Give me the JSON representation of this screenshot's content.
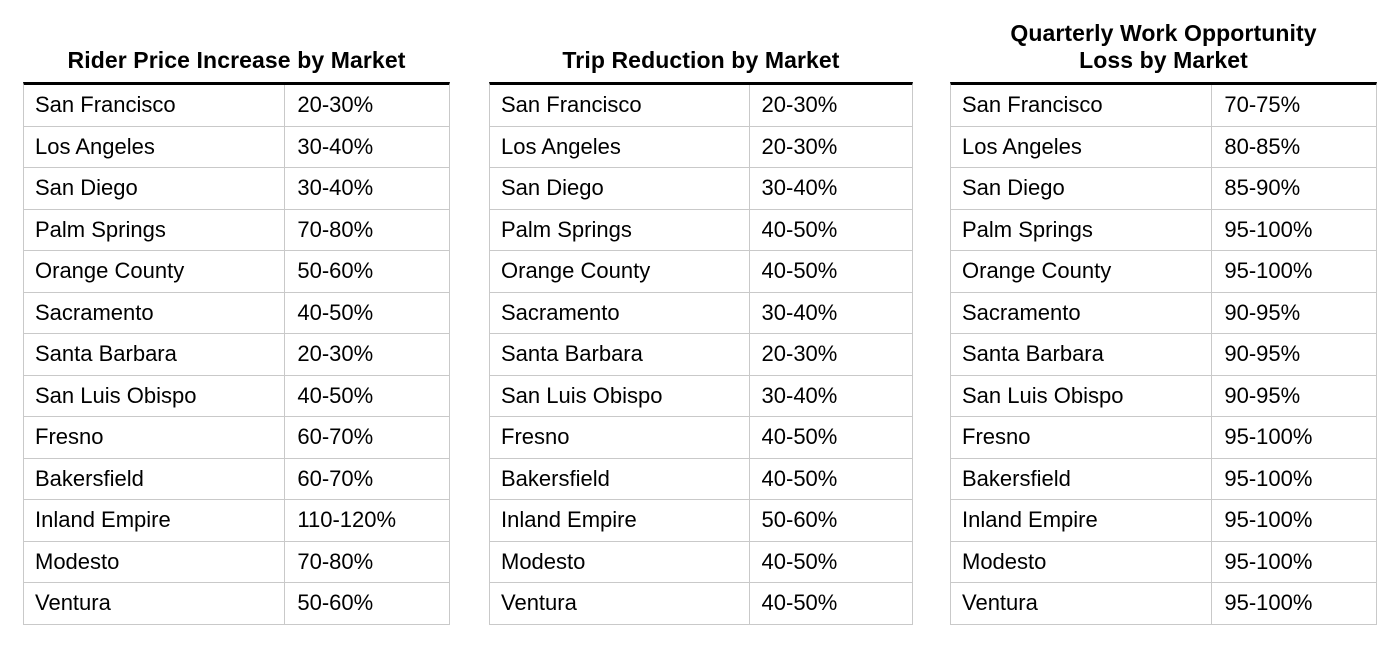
{
  "page": {
    "background": "#ffffff",
    "text_color": "#000000",
    "grid_border_color": "#c9c9c9",
    "title_rule_color": "#000000"
  },
  "chart_data": [
    {
      "type": "table",
      "title": "Rider Price Increase by Market",
      "title_lines": [
        "Rider Price Increase by Market"
      ],
      "rows": [
        [
          "San Francisco",
          "20-30%"
        ],
        [
          "Los Angeles",
          "30-40%"
        ],
        [
          "San Diego",
          "30-40%"
        ],
        [
          "Palm Springs",
          "70-80%"
        ],
        [
          "Orange County",
          "50-60%"
        ],
        [
          "Sacramento",
          "40-50%"
        ],
        [
          "Santa Barbara",
          "20-30%"
        ],
        [
          "San Luis Obispo",
          "40-50%"
        ],
        [
          "Fresno",
          "60-70%"
        ],
        [
          "Bakersfield",
          "60-70%"
        ],
        [
          "Inland Empire",
          "110-120%"
        ],
        [
          "Modesto",
          "70-80%"
        ],
        [
          "Ventura",
          "50-60%"
        ]
      ]
    },
    {
      "type": "table",
      "title": "Trip Reduction by Market",
      "title_lines": [
        "Trip Reduction by Market"
      ],
      "rows": [
        [
          "San Francisco",
          "20-30%"
        ],
        [
          "Los Angeles",
          "20-30%"
        ],
        [
          "San Diego",
          "30-40%"
        ],
        [
          "Palm Springs",
          "40-50%"
        ],
        [
          "Orange County",
          "40-50%"
        ],
        [
          "Sacramento",
          "30-40%"
        ],
        [
          "Santa Barbara",
          "20-30%"
        ],
        [
          "San Luis Obispo",
          "30-40%"
        ],
        [
          "Fresno",
          "40-50%"
        ],
        [
          "Bakersfield",
          "40-50%"
        ],
        [
          "Inland Empire",
          "50-60%"
        ],
        [
          "Modesto",
          "40-50%"
        ],
        [
          "Ventura",
          "40-50%"
        ]
      ]
    },
    {
      "type": "table",
      "title": "Quarterly Work Opportunity Loss by Market",
      "title_lines": [
        "Quarterly Work Opportunity",
        "Loss by Market"
      ],
      "rows": [
        [
          "San Francisco",
          "70-75%"
        ],
        [
          "Los Angeles",
          "80-85%"
        ],
        [
          "San Diego",
          "85-90%"
        ],
        [
          "Palm Springs",
          "95-100%"
        ],
        [
          "Orange County",
          "95-100%"
        ],
        [
          "Sacramento",
          "90-95%"
        ],
        [
          "Santa Barbara",
          "90-95%"
        ],
        [
          "San Luis Obispo",
          "90-95%"
        ],
        [
          "Fresno",
          "95-100%"
        ],
        [
          "Bakersfield",
          "95-100%"
        ],
        [
          "Inland Empire",
          "95-100%"
        ],
        [
          "Modesto",
          "95-100%"
        ],
        [
          "Ventura",
          "95-100%"
        ]
      ]
    }
  ]
}
